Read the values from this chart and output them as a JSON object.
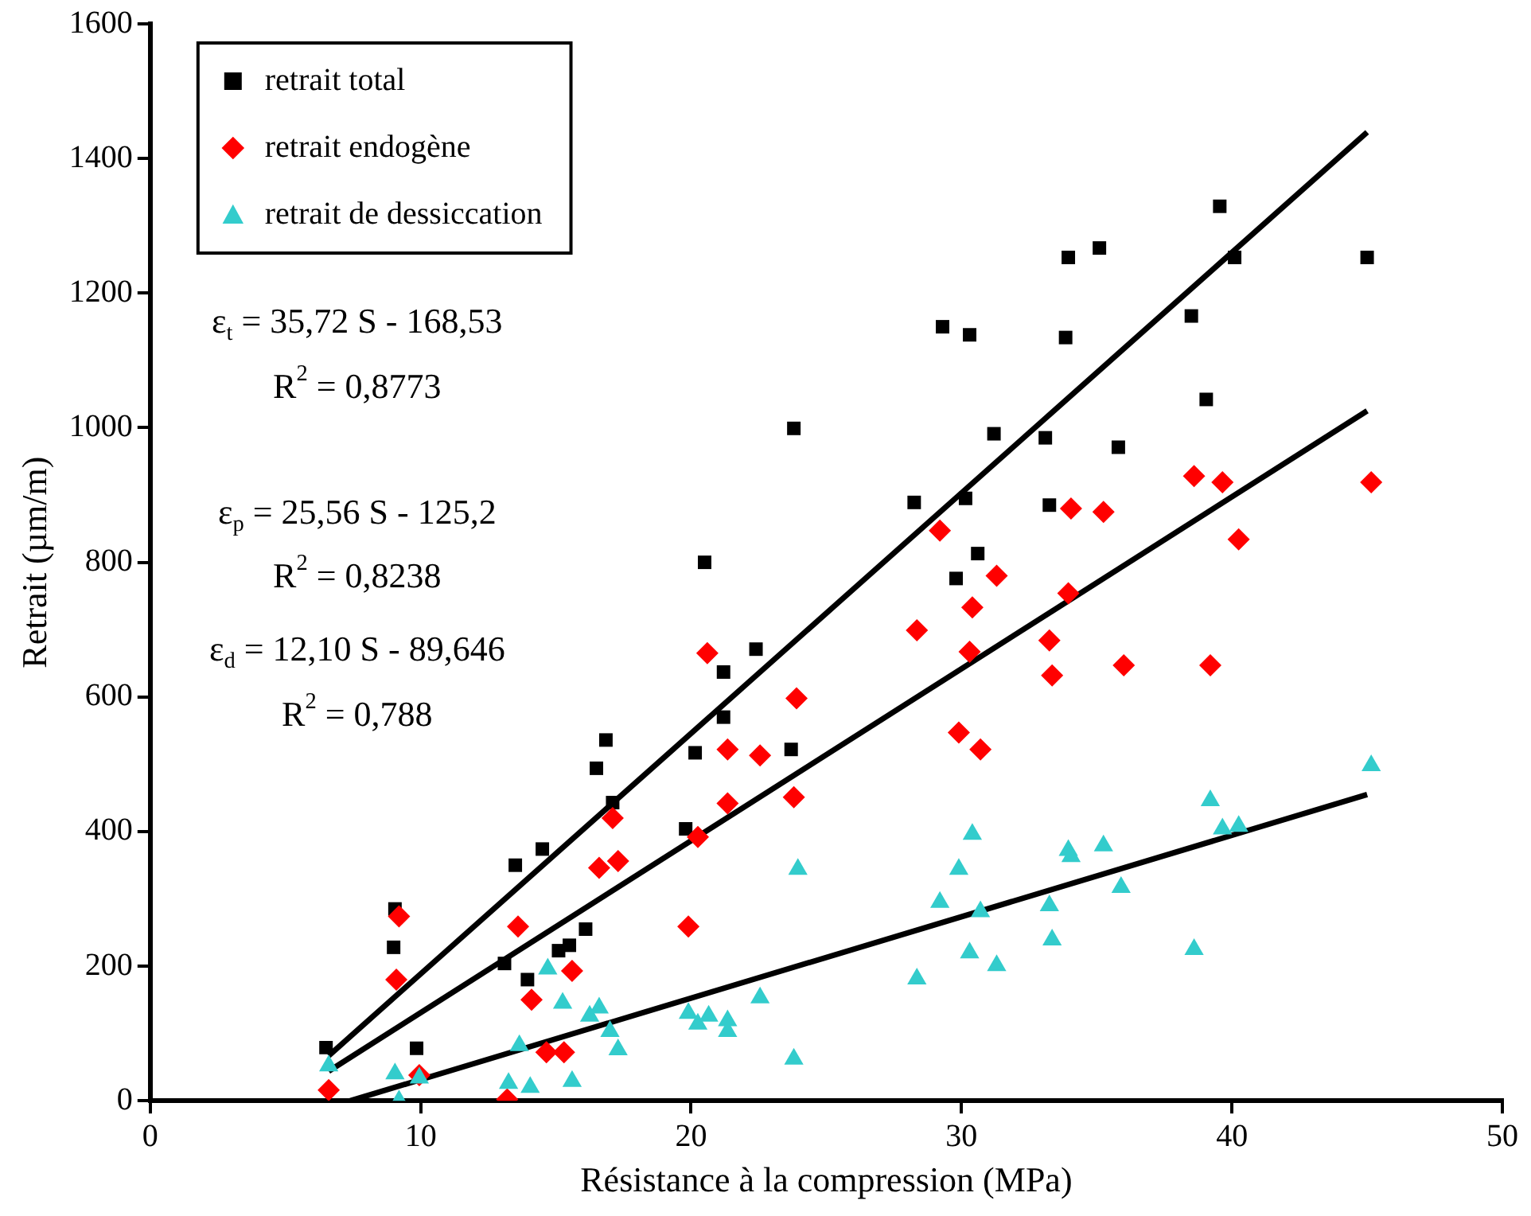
{
  "chart_data": {
    "type": "scatter",
    "xlabel": "Résistance à la compression (MPa)",
    "ylabel": "Retrait (µm/m)",
    "xlim": [
      0,
      50
    ],
    "xticks": [
      0,
      10,
      20,
      30,
      40,
      50
    ],
    "ylim": [
      0,
      1600
    ],
    "yticks": [
      0,
      200,
      400,
      600,
      800,
      1000,
      1200,
      1400,
      1600
    ],
    "grid": false,
    "legend": "top left",
    "annotations": [
      "ε$_{t}$ = 35,72 S - 168,53",
      "R$^{2}$ = 0,8773",
      "ε$_{p}$ = 25,56 S - 125,2",
      "R$^{2}$ = 0,8238",
      "ε$_{d}$ = 12,10 S - 89,646",
      "R$^{2}$ = 0,788"
    ],
    "series": [
      {
        "name": "retrait total",
        "color": "#000000",
        "marker": "square",
        "x": [
          6.5,
          9.0,
          9.05,
          9.85,
          13.1,
          13.5,
          13.95,
          14.5,
          15.1,
          15.5,
          16.1,
          16.5,
          16.85,
          17.1,
          19.8,
          20.15,
          20.5,
          21.2,
          21.2,
          22.4,
          23.7,
          23.8,
          28.25,
          29.3,
          29.8,
          30.15,
          30.3,
          30.6,
          31.2,
          33.1,
          33.25,
          33.85,
          33.95,
          35.1,
          35.8,
          38.5,
          39.05,
          39.55,
          40.1,
          45.0
        ],
        "values": [
          79,
          228,
          285,
          78,
          204,
          350,
          180,
          374,
          223,
          231,
          255,
          494,
          536,
          443,
          404,
          517,
          800,
          570,
          637,
          671,
          522,
          999,
          889,
          1150,
          776,
          895,
          1138,
          813,
          991,
          985,
          885,
          1134,
          1253,
          1267,
          971,
          1166,
          1042,
          1329,
          1253,
          1253
        ]
      },
      {
        "name": "retrait endogène",
        "color": "#ff0000",
        "marker": "diamond",
        "x": [
          6.6,
          9.1,
          9.2,
          9.95,
          13.2,
          13.6,
          14.1,
          14.65,
          15.3,
          15.6,
          16.6,
          17.1,
          17.3,
          19.9,
          20.25,
          20.6,
          21.35,
          21.35,
          22.55,
          23.8,
          23.9,
          28.35,
          29.2,
          29.9,
          30.3,
          30.4,
          30.7,
          31.3,
          33.25,
          33.35,
          33.95,
          34.05,
          35.25,
          36.0,
          38.6,
          39.2,
          39.65,
          40.25,
          45.15
        ],
        "values": [
          16,
          180,
          274,
          38,
          2,
          259,
          150,
          72,
          72,
          193,
          346,
          420,
          356,
          259,
          392,
          665,
          522,
          442,
          513,
          451,
          598,
          699,
          847,
          547,
          667,
          733,
          522,
          780,
          684,
          632,
          754,
          880,
          875,
          647,
          928,
          647,
          919,
          834,
          919
        ]
      },
      {
        "name": "retrait de dessiccation",
        "color": "#33cccc",
        "marker": "triangle",
        "x": [
          6.6,
          9.05,
          9.2,
          9.95,
          13.25,
          13.65,
          14.05,
          14.7,
          15.25,
          15.6,
          16.25,
          16.6,
          17.0,
          17.3,
          19.9,
          20.25,
          20.65,
          21.35,
          21.35,
          22.55,
          23.8,
          23.95,
          28.35,
          29.2,
          29.9,
          30.3,
          30.4,
          30.7,
          31.3,
          33.25,
          33.35,
          33.95,
          34.05,
          35.25,
          35.9,
          38.6,
          39.2,
          39.65,
          40.25,
          45.15
        ],
        "values": [
          52,
          40,
          0,
          34,
          26,
          82,
          20,
          196,
          145,
          29,
          126,
          138,
          103,
          76,
          130,
          114,
          126,
          119,
          103,
          153,
          62,
          344,
          181,
          295,
          344,
          220,
          396,
          281,
          201,
          290,
          239,
          372,
          363,
          379,
          317,
          225,
          446,
          404,
          408,
          498
        ]
      },
      {
        "type": "line",
        "color": "#000000",
        "marker": "none",
        "x": [
          6.6,
          45
        ],
        "values": [
          67,
          1439
        ]
      },
      {
        "type": "line",
        "color": "#000000",
        "marker": "none",
        "x": [
          6.6,
          45
        ],
        "values": [
          44,
          1025
        ]
      },
      {
        "type": "line",
        "color": "#000000",
        "marker": "none",
        "x": [
          7.4,
          45
        ],
        "values": [
          0,
          455
        ]
      }
    ]
  }
}
